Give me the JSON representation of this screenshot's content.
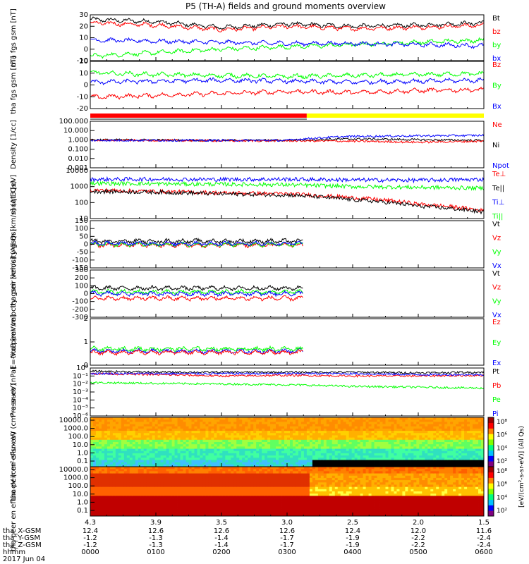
{
  "title": "P5 (TH-A) fields and ground moments overview",
  "date_label": "2017 Jun 04",
  "colors": {
    "black": "#000000",
    "red": "#ff0000",
    "green": "#00ff00",
    "blue": "#0000ff",
    "yellow": "#ffff00"
  },
  "footer": {
    "rows": [
      {
        "label": "tha_X-GSM",
        "values": [
          "12.4",
          "12.6",
          "12.6",
          "12.6",
          "12.4",
          "12.0",
          "11.6"
        ]
      },
      {
        "label": "tha_Y-GSM",
        "values": [
          "-1.2",
          "-1.3",
          "-1.4",
          "-1.7",
          "-1.9",
          "-2.2",
          "-2.4"
        ]
      },
      {
        "label": "tha_Z-GSM",
        "values": [
          "-1.2",
          "-1.3",
          "-1.4",
          "-1.7",
          "-1.9",
          "-2.2",
          "-2.4"
        ]
      },
      {
        "label": "hhmm",
        "values": [
          "0000",
          "0100",
          "0200",
          "0300",
          "0400",
          "0500",
          "0600"
        ]
      }
    ],
    "top_values": [
      "4.3",
      "3.9",
      "3.5",
      "3.0",
      "2.5",
      "2.0",
      "1.5"
    ]
  },
  "chart_data": [
    {
      "type": "line",
      "ylabel": "tha fgs gsm [nT]",
      "ylim": [
        -10,
        30
      ],
      "yticks": [
        "-10",
        "0",
        "10",
        "20",
        "30"
      ],
      "legend": [
        {
          "name": "Bt",
          "color": "#000000"
        },
        {
          "name": "bz",
          "color": "#ff0000"
        },
        {
          "name": "by",
          "color": "#00ff00"
        },
        {
          "name": "bx",
          "color": "#0000ff"
        }
      ],
      "series": [
        {
          "name": "Bt",
          "color": "#000000",
          "base": [
            26,
            24,
            19,
            22,
            20,
            21,
            23
          ]
        },
        {
          "name": "bz",
          "color": "#ff0000",
          "base": [
            23,
            21,
            17,
            20,
            18,
            19,
            21
          ]
        },
        {
          "name": "by",
          "color": "#00ff00",
          "base": [
            -6,
            -3,
            0,
            2,
            4,
            6,
            8
          ]
        },
        {
          "name": "bx",
          "color": "#0000ff",
          "base": [
            8,
            7,
            6,
            5,
            5,
            4,
            3
          ]
        }
      ]
    },
    {
      "type": "line",
      "ylabel": "tha fgs gsm [nT]",
      "ylim": [
        -30,
        20
      ],
      "yticks": [
        "-20",
        "-10",
        "0",
        "10",
        "20"
      ],
      "legend": [
        {
          "name": "Bz",
          "color": "#ff0000"
        },
        {
          "name": "By",
          "color": "#00ff00"
        },
        {
          "name": "Bx",
          "color": "#0000ff"
        }
      ],
      "series": [
        {
          "name": "Bz",
          "color": "#ff0000",
          "base": [
            -18,
            -16,
            -14,
            -12,
            -13,
            -11,
            -10
          ]
        },
        {
          "name": "By",
          "color": "#00ff00",
          "base": [
            8,
            6,
            5,
            4,
            5,
            6,
            7
          ]
        },
        {
          "name": "Bx",
          "color": "#0000ff",
          "base": [
            -2,
            -1,
            0,
            -1,
            -2,
            -1,
            0
          ]
        }
      ]
    },
    {
      "type": "line",
      "ylabel": "Density [1/cc]",
      "ylim": [
        0.0005,
        200
      ],
      "yticks": [
        "0.001",
        "0.010",
        "0.100",
        "1.000",
        "10.000",
        "100.000"
      ],
      "legend": [
        {
          "name": "Ne",
          "color": "#ff0000"
        },
        {
          "name": "Ni",
          "color": "#000000"
        },
        {
          "name": "Npot",
          "color": "#0000ff"
        }
      ],
      "series": [
        {
          "name": "Ni",
          "color": "#000000",
          "base": [
            1.2,
            1.1,
            1.0,
            1.0,
            1.5,
            1.2,
            1.0
          ]
        },
        {
          "name": "Ne",
          "color": "#ff0000",
          "base": [
            1.0,
            1.0,
            0.9,
            0.9,
            0.8,
            0.6,
            0.8
          ]
        },
        {
          "name": "Npot",
          "color": "#0000ff",
          "base": [
            1.0,
            1.0,
            1.0,
            1.0,
            3.0,
            3.5,
            4.0
          ]
        }
      ]
    },
    {
      "type": "line",
      "ylabel": "moqt3 [eV]",
      "ylim": [
        10,
        10000
      ],
      "yticks": [
        "10",
        "100",
        "1000",
        "10000"
      ],
      "legend": [
        {
          "name": "Te⊥",
          "color": "#ff0000"
        },
        {
          "name": "Te||",
          "color": "#000000"
        },
        {
          "name": "Ti⊥",
          "color": "#0000ff"
        },
        {
          "name": "Ti||",
          "color": "#00ff00"
        }
      ],
      "series": [
        {
          "name": "Ti⊥",
          "color": "#0000ff",
          "base": [
            2800,
            2900,
            2800,
            2900,
            2600,
            2500,
            2800
          ]
        },
        {
          "name": "Ti||",
          "color": "#00ff00",
          "base": [
            1600,
            1500,
            1400,
            1300,
            1000,
            900,
            800
          ]
        },
        {
          "name": "Te⊥",
          "color": "#ff0000",
          "base": [
            600,
            500,
            400,
            350,
            200,
            80,
            30
          ]
        },
        {
          "name": "Te||",
          "color": "#000000",
          "base": [
            500,
            450,
            350,
            300,
            150,
            60,
            25
          ]
        }
      ]
    },
    {
      "type": "line",
      "ylabel": "tha peir velocity gsm [km/s] (All Qs)",
      "ylim": [
        -150,
        150
      ],
      "yticks": [
        "-150",
        "-100",
        "-50",
        "0",
        "50",
        "100",
        "150"
      ],
      "legend": [
        {
          "name": "Vt",
          "color": "#000000"
        },
        {
          "name": "Vz",
          "color": "#ff0000"
        },
        {
          "name": "Vy",
          "color": "#00ff00"
        },
        {
          "name": "Vx",
          "color": "#0000ff"
        }
      ],
      "series": [
        {
          "name": "Vt",
          "color": "#000000",
          "base": [
            20,
            20,
            20,
            20
          ]
        },
        {
          "name": "Vz",
          "color": "#ff0000",
          "base": [
            -5,
            -5,
            -5,
            -5
          ]
        },
        {
          "name": "Vy",
          "color": "#00ff00",
          "base": [
            0,
            0,
            0,
            0
          ]
        },
        {
          "name": "Vx",
          "color": "#0000ff",
          "base": [
            5,
            5,
            5,
            5
          ]
        }
      ]
    },
    {
      "type": "line",
      "ylabel": "tha peer velocity gsm [km/s] (All Qs)",
      "ylim": [
        -300,
        300
      ],
      "yticks": [
        "-300",
        "-200",
        "-100",
        "0",
        "100",
        "200",
        "300"
      ],
      "legend": [
        {
          "name": "Vt",
          "color": "#000000"
        },
        {
          "name": "Vz",
          "color": "#ff0000"
        },
        {
          "name": "Vy",
          "color": "#00ff00"
        },
        {
          "name": "Vx",
          "color": "#0000ff"
        }
      ],
      "series": [
        {
          "name": "Vt",
          "color": "#000000",
          "base": [
            70,
            70,
            70,
            70
          ]
        },
        {
          "name": "Vz",
          "color": "#ff0000",
          "base": [
            -60,
            -60,
            -60,
            -60
          ]
        },
        {
          "name": "Vy",
          "color": "#00ff00",
          "base": [
            20,
            20,
            20,
            20
          ]
        },
        {
          "name": "Vx",
          "color": "#0000ff",
          "base": [
            0,
            0,
            0,
            0
          ]
        }
      ]
    },
    {
      "type": "line",
      "ylabel": "E=-VxB [mV/m]",
      "ylim": [
        -1,
        3
      ],
      "yticks": [
        "0",
        "1",
        "2"
      ],
      "legend": [
        {
          "name": "Ez",
          "color": "#ff0000"
        },
        {
          "name": "Ey",
          "color": "#00ff00"
        },
        {
          "name": "Ex",
          "color": "#0000ff"
        }
      ],
      "series": [
        {
          "name": "Ex",
          "color": "#0000ff",
          "base": [
            0.2,
            0.2,
            0.2,
            0.2
          ]
        },
        {
          "name": "Ey",
          "color": "#00ff00",
          "base": [
            0.4,
            0.4,
            0.4,
            0.4
          ]
        },
        {
          "name": "Ez",
          "color": "#ff0000",
          "base": [
            0.1,
            0.1,
            0.1,
            0.1
          ]
        }
      ]
    },
    {
      "type": "line",
      "ylabel": "Pressure [nPa]",
      "ylim": [
        1e-06,
        1
      ],
      "yticks": [
        "10⁻⁶",
        "10⁻⁵",
        "10⁻⁴",
        "10⁻³",
        "10⁻²",
        "10⁻¹",
        "10⁰"
      ],
      "legend": [
        {
          "name": "Pt",
          "color": "#000000"
        },
        {
          "name": "Pb",
          "color": "#ff0000"
        },
        {
          "name": "Pe",
          "color": "#00ff00"
        },
        {
          "name": "Pi",
          "color": "#0000ff"
        }
      ],
      "series": [
        {
          "name": "Pt",
          "color": "#000000",
          "base": [
            0.4,
            0.3,
            0.3,
            0.3,
            0.3,
            0.25,
            0.3
          ]
        },
        {
          "name": "Pb",
          "color": "#ff0000",
          "base": [
            0.2,
            0.15,
            0.1,
            0.12,
            0.1,
            0.1,
            0.12
          ]
        },
        {
          "name": "Pi",
          "color": "#0000ff",
          "base": [
            0.2,
            0.2,
            0.2,
            0.2,
            0.2,
            0.15,
            0.15
          ]
        },
        {
          "name": "Pe",
          "color": "#00ff00",
          "base": [
            0.015,
            0.012,
            0.01,
            0.008,
            0.005,
            0.004,
            0.003
          ]
        }
      ]
    },
    {
      "type": "heatmap",
      "ylabel": "tha peir en eflux eV",
      "units": "(cm²-s-sr-eV)",
      "yticks": [
        "0.1",
        "1.0",
        "10.0",
        "100.0",
        "1000.0",
        "10000.0"
      ]
    },
    {
      "type": "heatmap",
      "ylabel": "tha peer en eflux eV",
      "units": "(cm²-s-sr-eV)",
      "yticks": [
        "0.1",
        "1.0",
        "10.0",
        "100.0",
        "1000.0",
        "10000.0"
      ]
    }
  ],
  "colorbars": [
    {
      "ticks": [
        "10²",
        "10⁴",
        "10⁶",
        "10⁸"
      ]
    },
    {
      "ticks": [
        "10²",
        "10⁴",
        "10⁶",
        "10⁸"
      ]
    }
  ],
  "colorbar_label": "[eV/(cm²-s-sr-eV)] (All Qs)"
}
